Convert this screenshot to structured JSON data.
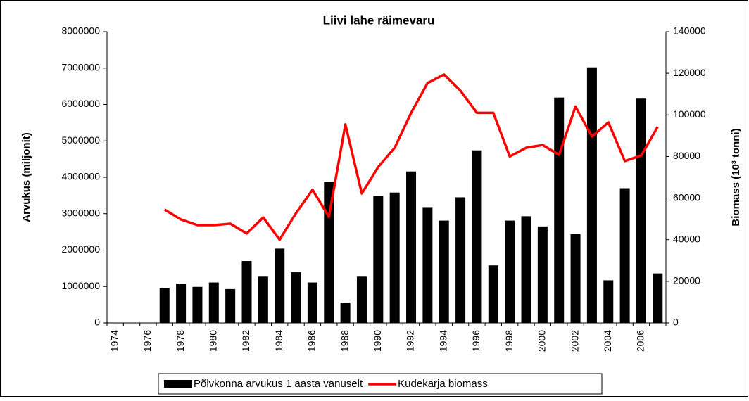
{
  "chart_data": {
    "type": "bar_line",
    "title": "Liivi lahe räimevaru",
    "y_label": "Arvukus (miljonit)",
    "y2_label": "Biomass (10³ tonni)",
    "categories": [
      "1974",
      null,
      "1976",
      null,
      "1978",
      null,
      "1980",
      null,
      "1982",
      null,
      "1984",
      null,
      "1986",
      null,
      "1988",
      null,
      "1990",
      null,
      "1992",
      null,
      "1994",
      null,
      "1996",
      null,
      "1998",
      null,
      "2000",
      null,
      "2002",
      null,
      "2004",
      null,
      "2006",
      null
    ],
    "ylim": [
      0,
      8000000
    ],
    "yticks": [
      0,
      1000000,
      2000000,
      3000000,
      4000000,
      5000000,
      6000000,
      7000000,
      8000000
    ],
    "y2lim": [
      0,
      140000
    ],
    "y2ticks": [
      0,
      20000,
      40000,
      60000,
      80000,
      100000,
      120000,
      140000
    ],
    "legend": "bottom",
    "series": [
      {
        "name": "Põlvkonna arvukus 1 aasta vanuselt",
        "type": "bar",
        "color": "#000000",
        "values": [
          null,
          null,
          null,
          960000,
          1080000,
          990000,
          1110000,
          930000,
          1700000,
          1270000,
          2040000,
          1390000,
          1110000,
          3880000,
          560000,
          1270000,
          3490000,
          3580000,
          4160000,
          3180000,
          2810000,
          3450000,
          4740000,
          1580000,
          2810000,
          2930000,
          2650000,
          6190000,
          2440000,
          7020000,
          1170000,
          3700000,
          6160000,
          1360000
        ]
      },
      {
        "name": "Kudekarja biomass",
        "type": "line",
        "axis": "y2",
        "color": "#ff0000",
        "values": [
          null,
          null,
          null,
          54500,
          49700,
          47000,
          47000,
          47700,
          43000,
          50700,
          40000,
          52800,
          64000,
          51000,
          95400,
          62200,
          75000,
          84200,
          101000,
          115300,
          119400,
          111600,
          101000,
          101000,
          80000,
          84200,
          85500,
          80800,
          104000,
          89600,
          96400,
          77800,
          80500,
          94300
        ]
      }
    ]
  }
}
